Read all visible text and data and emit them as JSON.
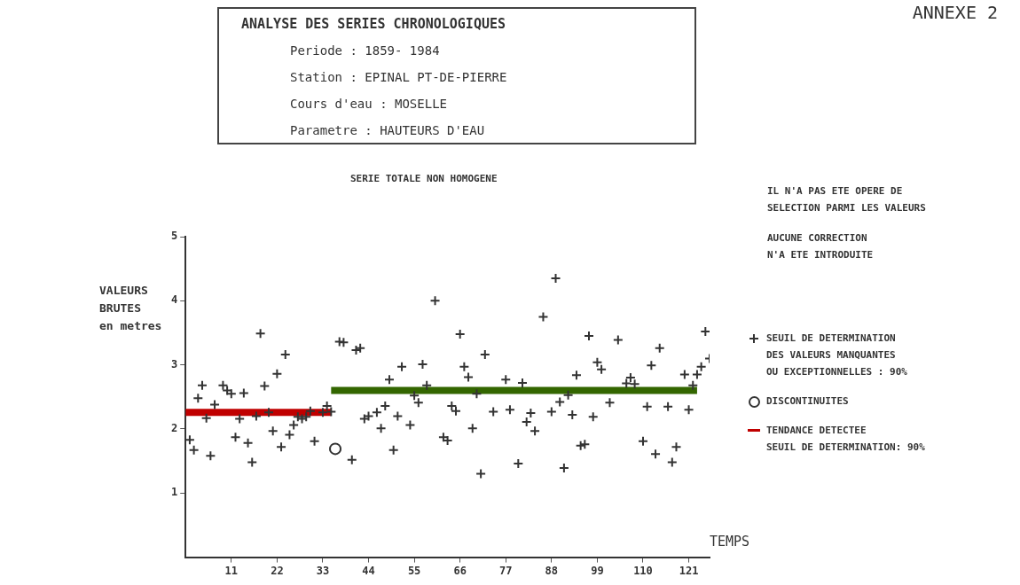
{
  "chart_data": {
    "type": "scatter",
    "title": "ANALYSE DES SERIES CHRONOLOGIQUES",
    "subtitle": "Periode : 1859- 1984\nStation : EPINAL PT-DE-PIERRE\nCours d'eau : MOSELLE\nParametre : HAUTEURS D'EAU",
    "ylabel": "VALEURS\nBRUTES\nen metres",
    "xlabel": "TEMPS",
    "annotations": [
      "ANNEXE 2",
      "SERIE TOTALE NON HOMOGENE",
      "IL N'A PAS ETE OPERE DE\nSELECTION PARMI LES VALEURS",
      "AUCUNE CORRECTION\nN'A ETE INTRODUITE",
      "SEUIL DE DETERMINATION: 90%"
    ],
    "xlim": [
      0,
      126
    ],
    "xticks": [
      11,
      22,
      33,
      44,
      55,
      66,
      77,
      88,
      99,
      110,
      121
    ],
    "ylim": [
      0,
      5
    ],
    "yticks": [
      1,
      2,
      3,
      4,
      5
    ],
    "grid": false,
    "legend": "right",
    "marker": "cross",
    "series": [
      {
        "name": "SEUIL DE DETERMINATION\nDES VALEURS MANQUANTES\nOU EXCEPTIONNELLES :  90%",
        "color": "#333333",
        "x": [
          1,
          2,
          3,
          4,
          5,
          6,
          7,
          9,
          10,
          11,
          12,
          13,
          14,
          15,
          16,
          17,
          18,
          19,
          20,
          21,
          22,
          23,
          24,
          25,
          26,
          27,
          28,
          29,
          30,
          31,
          33,
          34,
          35,
          37,
          38,
          40,
          41,
          42,
          43,
          44,
          46,
          47,
          48,
          49,
          50,
          51,
          52,
          54,
          55,
          56,
          57,
          58,
          60,
          62,
          63,
          64,
          65,
          66,
          67,
          68,
          69,
          70,
          71,
          72,
          74,
          77,
          78,
          80,
          81,
          82,
          83,
          84,
          86,
          88,
          89,
          90,
          91,
          92,
          93,
          94,
          95,
          96,
          97,
          98,
          99,
          100,
          102,
          104,
          106,
          107,
          108,
          110,
          111,
          112,
          113,
          114,
          116,
          117,
          118,
          120,
          121,
          122,
          123,
          124,
          125,
          126
        ],
        "values": [
          1.83,
          1.67,
          2.48,
          2.68,
          2.17,
          1.58,
          2.38,
          2.68,
          2.6,
          2.55,
          1.87,
          2.16,
          2.56,
          1.78,
          1.48,
          2.2,
          3.49,
          2.67,
          2.26,
          1.97,
          2.86,
          1.72,
          3.16,
          1.91,
          2.06,
          2.19,
          2.16,
          2.19,
          2.28,
          1.81,
          2.26,
          2.36,
          2.27,
          3.36,
          3.35,
          1.52,
          3.23,
          3.26,
          2.16,
          2.2,
          2.26,
          2.01,
          2.36,
          2.77,
          1.67,
          2.2,
          2.97,
          2.06,
          2.52,
          2.41,
          3.01,
          2.68,
          4.0,
          1.87,
          1.82,
          2.36,
          2.28,
          3.48,
          2.97,
          2.81,
          2.01,
          2.55,
          1.3,
          3.16,
          2.27,
          2.77,
          2.3,
          1.46,
          2.72,
          2.11,
          2.25,
          1.97,
          3.75,
          2.27,
          4.35,
          2.42,
          1.39,
          2.53,
          2.22,
          2.84,
          1.74,
          1.76,
          3.45,
          2.19,
          3.04,
          2.93,
          2.41,
          3.39,
          2.71,
          2.8,
          2.7,
          1.81,
          2.35,
          2.99,
          1.61,
          3.26,
          2.35,
          1.48,
          1.72,
          2.85,
          2.3,
          2.68,
          2.85,
          2.97,
          3.52,
          3.1
        ]
      },
      {
        "name": "DISCONTINUITES",
        "color": "#333333",
        "marker": "circle",
        "x": [
          36
        ],
        "values": [
          1.69
        ]
      },
      {
        "name": "TENDANCE DETECTEE",
        "type": "line",
        "marker": "none",
        "color": "#c00000",
        "x": [
          0,
          35
        ],
        "values": [
          2.26,
          2.26
        ]
      },
      {
        "type": "line",
        "marker": "none",
        "color": "#336600",
        "x": [
          35,
          123
        ],
        "values": [
          2.6,
          2.6
        ]
      }
    ]
  }
}
